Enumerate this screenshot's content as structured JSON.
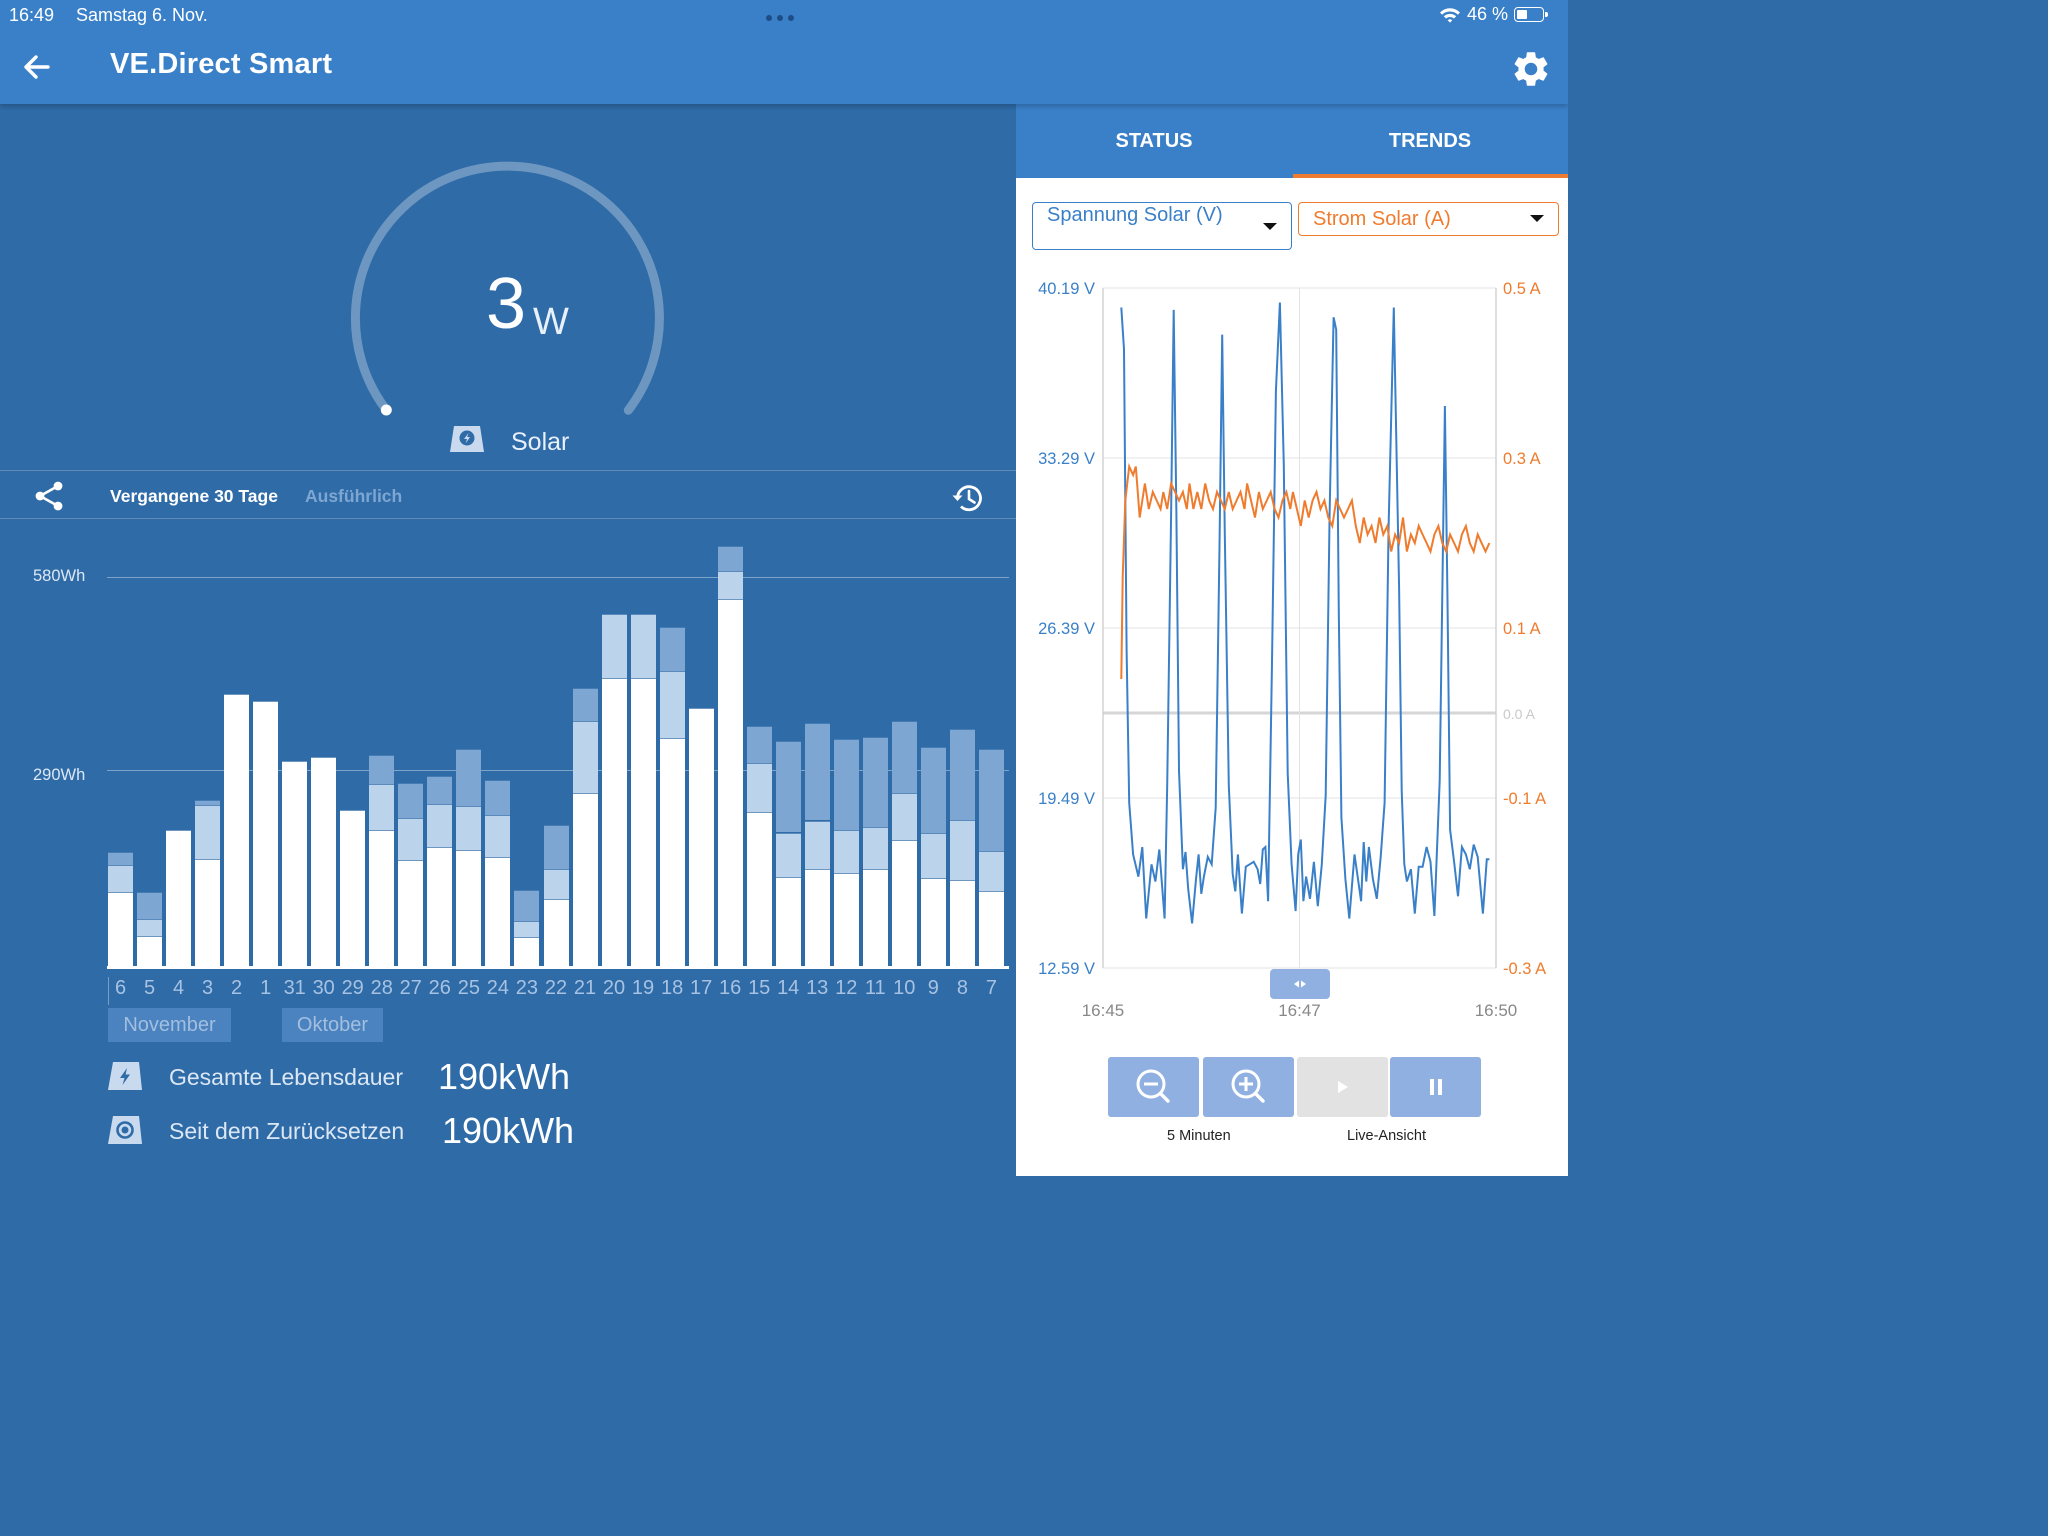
{
  "status_bar": {
    "time": "16:49",
    "date": "Samstag 6. Nov.",
    "battery": "46 %"
  },
  "app_bar": {
    "title": "VE.Direct Smart",
    "back_icon": "arrow-left-icon",
    "settings_icon": "gear-icon"
  },
  "gauge": {
    "value": "3",
    "unit": "W",
    "label": "Solar",
    "icon": "solar-panel-icon",
    "fill_fraction": 0.005
  },
  "history": {
    "tabs": [
      "Vergangene 30 Tage",
      "Ausführlich"
    ],
    "share_icon": "share-icon",
    "history_icon": "history-icon"
  },
  "summary": [
    {
      "label": "Gesamte Lebensdauer",
      "value": "190kWh",
      "icon": "solar-charge-icon"
    },
    {
      "label": "Seit dem Zurücksetzen",
      "value": "190kWh",
      "icon": "reset-icon"
    }
  ],
  "right_tabs": [
    "STATUS",
    "TRENDS"
  ],
  "selectors": {
    "left": "Spannung Solar (V)",
    "right": "Strom Solar (A)"
  },
  "controls": {
    "zoom_label": "5 Minuten",
    "live_label": "Live-Ansicht",
    "icons": [
      "zoom-out-icon",
      "zoom-in-icon",
      "play-icon",
      "pause-icon"
    ]
  },
  "colors": {
    "primary": "#3a80c9",
    "panel": "#2f6ba7",
    "accent_orange": "#ef7c2e",
    "line_blue": "#3a80c9",
    "bar_white": "#ffffff",
    "bar_light": "#bcd3ec",
    "bar_mid": "#7ea6d2"
  },
  "chart_data": [
    {
      "type": "bar",
      "title": "",
      "ylabel": "",
      "yticks": [
        "580Wh",
        "290Wh"
      ],
      "ylim": [
        0,
        580
      ],
      "categories": [
        "6",
        "5",
        "4",
        "3",
        "2",
        "1",
        "31",
        "30",
        "29",
        "28",
        "27",
        "26",
        "25",
        "24",
        "23",
        "22",
        "21",
        "20",
        "19",
        "18",
        "17",
        "16",
        "15",
        "14",
        "13",
        "12",
        "11",
        "10",
        "9",
        "8",
        "7"
      ],
      "month_labels": [
        "November",
        "Oktober"
      ],
      "series": [
        {
          "values": [
            110,
            45,
            203,
            160,
            405,
            395,
            305,
            312,
            232,
            203,
            158,
            178,
            173,
            163,
            43,
            100,
            258,
            430,
            430,
            340,
            385,
            547,
            230,
            133,
            145,
            138,
            145,
            188,
            131,
            128,
            112
          ]
        },
        {
          "values": [
            40,
            25,
            0,
            80,
            0,
            0,
            0,
            0,
            0,
            68,
            62,
            63,
            65,
            62,
            24,
            45,
            107,
            95,
            95,
            100,
            0,
            42,
            73,
            66,
            72,
            65,
            62,
            70,
            67,
            90,
            60
          ]
        },
        {
          "values": [
            20,
            40,
            0,
            7,
            0,
            0,
            0,
            0,
            0,
            43,
            53,
            43,
            85,
            52,
            47,
            65,
            50,
            0,
            0,
            65,
            0,
            38,
            55,
            137,
            145,
            135,
            135,
            108,
            128,
            135,
            152
          ]
        }
      ]
    },
    {
      "type": "line",
      "title": "",
      "xlabel": "",
      "x_ticks": [
        "16:45",
        "16:47",
        "16:50"
      ],
      "xlim": [
        0,
        300
      ],
      "y_left": {
        "label": "Spannung Solar (V)",
        "ticks": [
          "40.19 V",
          "33.29 V",
          "26.39 V",
          "19.49 V",
          "12.59 V"
        ],
        "range": [
          12.59,
          40.19
        ]
      },
      "y_right": {
        "label": "Strom Solar (A)",
        "ticks": [
          "0.5 A",
          "0.3 A",
          "0.1 A",
          "0.0 A",
          "-0.1 A",
          "-0.3 A"
        ],
        "range": [
          -0.3,
          0.5
        ]
      },
      "series": [
        {
          "name": "Spannung Solar (V)",
          "x": [
            14,
            16,
            18,
            20,
            23,
            27,
            30,
            33,
            37,
            40,
            43,
            47,
            49,
            52,
            54,
            56,
            58,
            61,
            63,
            65,
            68,
            71,
            73,
            75,
            77,
            80,
            83,
            86,
            89,
            91,
            93,
            96,
            99,
            101,
            103,
            106,
            109,
            112,
            115,
            118,
            120,
            122,
            124,
            126,
            129,
            132,
            135,
            138,
            141,
            144,
            147,
            149,
            151,
            153,
            155,
            158,
            161,
            164,
            167,
            170,
            173,
            176,
            178,
            180,
            182,
            185,
            188,
            192,
            197,
            199,
            201,
            203,
            206,
            209,
            212,
            215,
            218,
            222,
            226,
            228,
            230,
            232,
            235,
            238,
            241,
            244,
            247,
            250,
            253,
            257,
            261,
            263,
            265,
            268,
            271,
            274,
            277,
            280,
            283,
            286,
            290,
            293,
            295
          ],
          "y": [
            39.4,
            37.7,
            25.5,
            19.3,
            17.2,
            16.3,
            17.5,
            14.6,
            16.8,
            16.1,
            17.4,
            14.6,
            20.0,
            31.0,
            39.3,
            31.0,
            20.6,
            16.6,
            17.3,
            15.8,
            14.4,
            16.2,
            17.2,
            15.6,
            16.3,
            17.1,
            16.8,
            19.1,
            30.0,
            38.3,
            30.2,
            20.0,
            16.4,
            15.7,
            17.2,
            14.8,
            16.7,
            16.8,
            16.9,
            16.6,
            16.0,
            17.4,
            17.5,
            15.3,
            25.0,
            36.0,
            39.6,
            33.0,
            20.5,
            16.8,
            14.9,
            17.2,
            17.8,
            15.3,
            16.3,
            15.4,
            16.9,
            15.1,
            16.8,
            19.6,
            31.0,
            39.0,
            38.5,
            27.0,
            18.7,
            16.2,
            14.6,
            17.2,
            15.3,
            17.7,
            16.1,
            17.5,
            16.2,
            15.4,
            17.1,
            19.3,
            30.5,
            39.4,
            28.0,
            19.8,
            16.8,
            16.1,
            16.6,
            14.8,
            16.7,
            16.7,
            17.5,
            16.9,
            14.7,
            20.2,
            35.4,
            27.5,
            18.2,
            16.9,
            15.5,
            17.5,
            17.2,
            16.6,
            17.6,
            17.1,
            14.8,
            17.0,
            17.0
          ]
        },
        {
          "name": "Strom Solar (A)",
          "x": [
            14,
            15,
            17,
            20,
            23,
            25,
            28,
            32,
            35,
            38,
            41,
            44,
            46,
            49,
            52,
            55,
            58,
            61,
            64,
            66,
            69,
            72,
            75,
            78,
            81,
            84,
            87,
            90,
            93,
            96,
            99,
            102,
            105,
            108,
            110,
            113,
            116,
            119,
            122,
            125,
            128,
            131,
            134,
            137,
            140,
            143,
            145,
            148,
            151,
            154,
            157,
            160,
            163,
            166,
            169,
            172,
            175,
            178,
            181,
            184,
            187,
            190,
            193,
            196,
            199,
            202,
            205,
            208,
            211,
            214,
            217,
            220,
            223,
            226,
            229,
            232,
            235,
            238,
            241,
            244,
            247,
            250,
            253,
            256,
            259,
            262,
            265,
            268,
            271,
            274,
            277,
            280,
            283,
            286,
            289,
            292,
            295
          ],
          "y": [
            0.04,
            0.16,
            0.25,
            0.29,
            0.28,
            0.29,
            0.23,
            0.27,
            0.24,
            0.26,
            0.25,
            0.24,
            0.26,
            0.24,
            0.27,
            0.26,
            0.25,
            0.26,
            0.24,
            0.27,
            0.24,
            0.26,
            0.24,
            0.27,
            0.25,
            0.24,
            0.26,
            0.25,
            0.24,
            0.26,
            0.24,
            0.25,
            0.26,
            0.24,
            0.27,
            0.25,
            0.23,
            0.26,
            0.24,
            0.25,
            0.26,
            0.24,
            0.23,
            0.25,
            0.26,
            0.24,
            0.26,
            0.24,
            0.22,
            0.25,
            0.23,
            0.25,
            0.26,
            0.24,
            0.25,
            0.23,
            0.22,
            0.25,
            0.24,
            0.23,
            0.24,
            0.25,
            0.22,
            0.2,
            0.23,
            0.21,
            0.22,
            0.2,
            0.23,
            0.21,
            0.22,
            0.19,
            0.21,
            0.2,
            0.23,
            0.19,
            0.21,
            0.2,
            0.22,
            0.21,
            0.2,
            0.19,
            0.21,
            0.22,
            0.2,
            0.19,
            0.21,
            0.2,
            0.19,
            0.21,
            0.22,
            0.2,
            0.19,
            0.21,
            0.2,
            0.19,
            0.2
          ]
        }
      ]
    }
  ]
}
